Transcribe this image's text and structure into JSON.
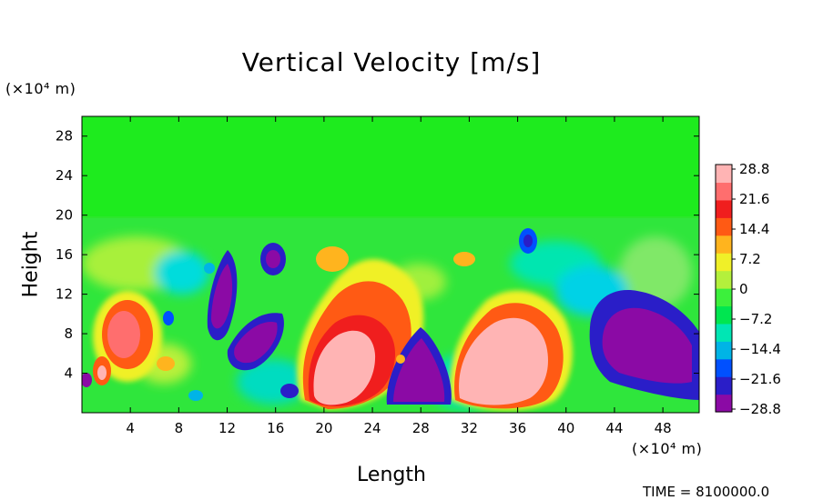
{
  "chart_data": {
    "type": "heatmap",
    "title": "Vertical Velocity [m/s]",
    "xlabel": "Length",
    "ylabel": "Height",
    "x_unit": "(×10⁴ m)",
    "y_unit": "(×10⁴ m)",
    "xlim": [
      0,
      51
    ],
    "ylim": [
      0,
      30
    ],
    "xticks": [
      "4",
      "8",
      "12",
      "16",
      "20",
      "24",
      "28",
      "32",
      "36",
      "40",
      "44",
      "48"
    ],
    "yticks": [
      "4",
      "8",
      "12",
      "16",
      "20",
      "24",
      "28"
    ],
    "colorbar": {
      "labels": [
        "28.8",
        "21.6",
        "14.4",
        "7.2",
        "0",
        "−7.2",
        "−14.4",
        "−21.6",
        "−28.8"
      ],
      "range": [
        -28.8,
        28.8
      ],
      "colors": [
        "#8b0aa5",
        "#2a1ec8",
        "#0050ff",
        "#00b4e6",
        "#00e6b4",
        "#00e650",
        "#3cf03c",
        "#b4f03c",
        "#f0f028",
        "#ffb41e",
        "#ff5a14",
        "#f01e1e",
        "#ff6e6e",
        "#ffb4b4"
      ]
    },
    "features": [
      {
        "x": 21.5,
        "y": 4.5,
        "w": 20,
        "note": "strong updraft"
      },
      {
        "x": 34,
        "y": 5.5,
        "w": 24,
        "note": "strong updraft"
      },
      {
        "x": 24,
        "y": 11,
        "w": 16,
        "note": "updraft plume"
      },
      {
        "x": 4,
        "y": 8,
        "w": 20,
        "note": "updraft"
      },
      {
        "x": 28,
        "y": 4,
        "w": -28.8,
        "note": "downdraft"
      },
      {
        "x": 46,
        "y": 7,
        "w": -28.8,
        "note": "downdraft"
      },
      {
        "x": 13,
        "y": 9,
        "w": -28.8,
        "note": "downdraft"
      }
    ],
    "grid": false,
    "legend": "colorbar-right"
  },
  "footer": {
    "time_label": "TIME = 8100000.0"
  }
}
